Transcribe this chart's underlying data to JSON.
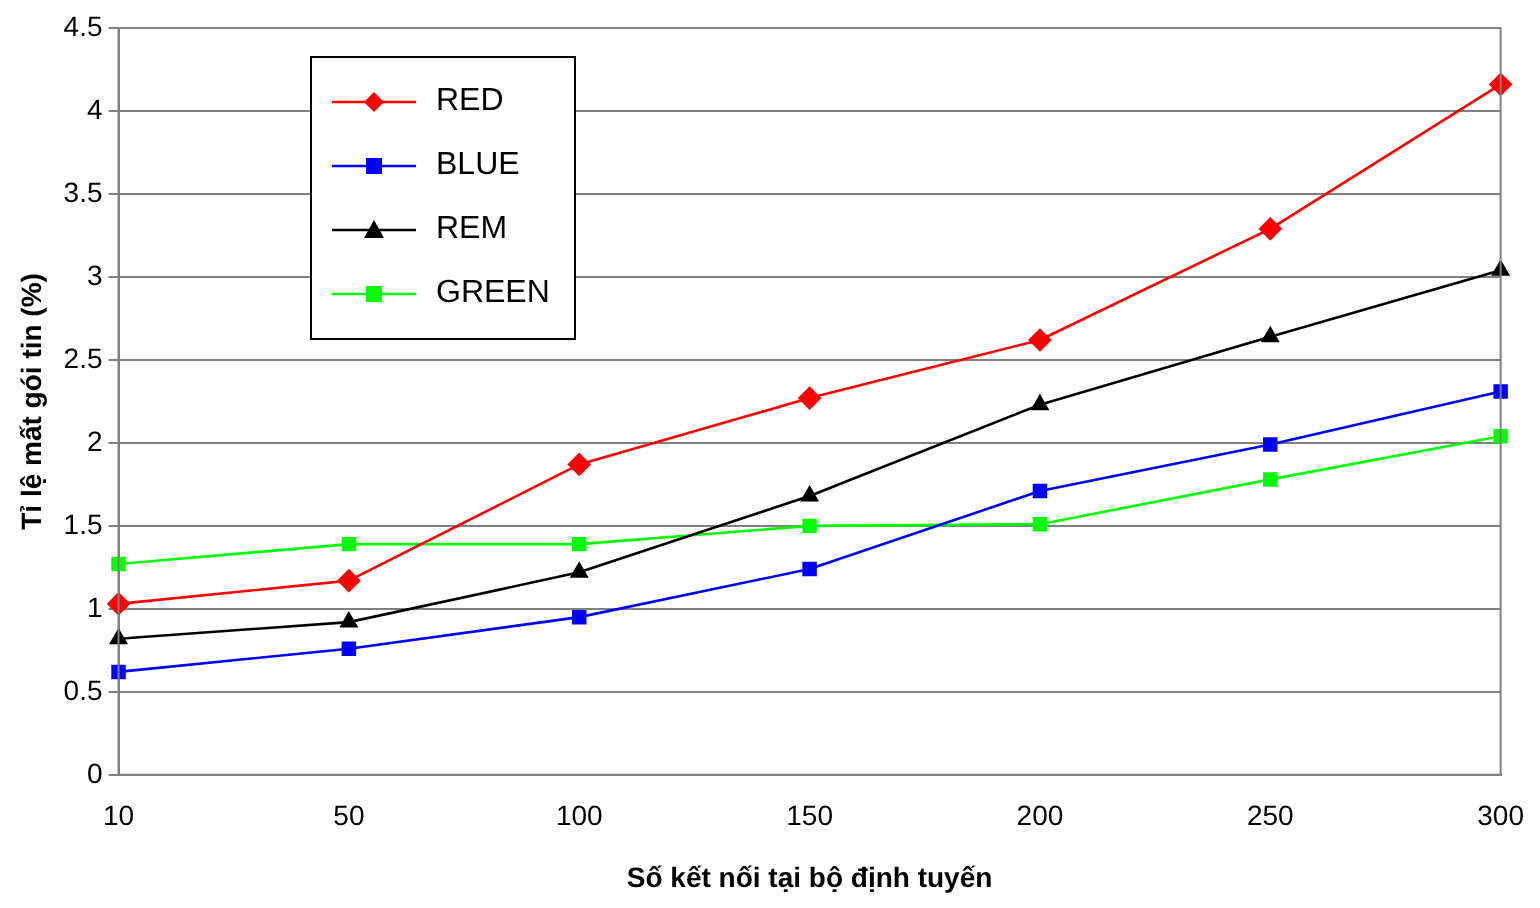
{
  "chart_data": {
    "type": "line",
    "xlabel": "Số kết nối tại bộ định tuyến",
    "ylabel": "Tỉ lệ mất gói tin (%)",
    "categories": [
      "10",
      "50",
      "100",
      "150",
      "200",
      "250",
      "300"
    ],
    "series": [
      {
        "name": "RED",
        "color": "#ff0000",
        "marker": "diamond",
        "values": [
          1.03,
          1.17,
          1.87,
          2.27,
          2.62,
          3.29,
          4.16
        ]
      },
      {
        "name": "BLUE",
        "color": "#0000ff",
        "marker": "square",
        "values": [
          0.62,
          0.76,
          0.95,
          1.24,
          1.71,
          1.99,
          2.31
        ]
      },
      {
        "name": "REM",
        "color": "#000000",
        "marker": "triangle",
        "values": [
          0.82,
          0.92,
          1.22,
          1.68,
          2.23,
          2.64,
          3.04
        ]
      },
      {
        "name": "GREEN",
        "color": "#00ff00",
        "marker": "square",
        "values": [
          1.27,
          1.39,
          1.39,
          1.5,
          1.51,
          1.78,
          2.04
        ]
      }
    ],
    "ylim": [
      0,
      4.5
    ],
    "yticks": [
      0,
      0.5,
      1,
      1.5,
      2,
      2.5,
      3,
      3.5,
      4,
      4.5
    ],
    "grid": "y",
    "legend": "top left",
    "line_style": "solid"
  }
}
